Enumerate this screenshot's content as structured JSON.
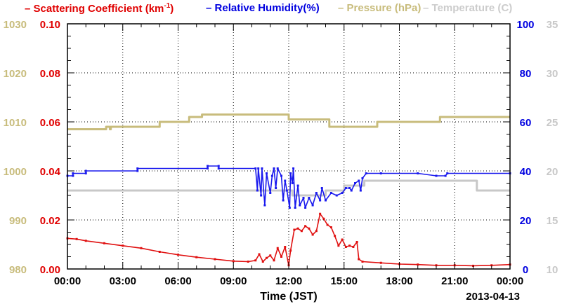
{
  "chart_data": {
    "type": "line",
    "x_axis": {
      "label": "Time (JST)",
      "date_label": "2013-04-13",
      "ticks": [
        "00:00",
        "03:00",
        "06:00",
        "09:00",
        "12:00",
        "15:00",
        "18:00",
        "21:00",
        "00:00"
      ],
      "range_hours": [
        0,
        24
      ]
    },
    "axes": {
      "pressure": {
        "ylim": [
          980,
          1030
        ],
        "ticks": [
          "980",
          "990",
          "1000",
          "1010",
          "1020",
          "1030"
        ],
        "color": "#c8bc7c"
      },
      "scattering": {
        "ylim": [
          0,
          0.1
        ],
        "ticks": [
          "0.00",
          "0.02",
          "0.04",
          "0.06",
          "0.08",
          "0.10"
        ],
        "color": "#e00000"
      },
      "humidity": {
        "ylim": [
          0,
          100
        ],
        "ticks": [
          "0",
          "20",
          "40",
          "60",
          "80",
          "100"
        ],
        "color": "#0000e0"
      },
      "temperature": {
        "ylim": [
          10,
          35
        ],
        "ticks": [
          "10",
          "15",
          "20",
          "25",
          "30",
          "35"
        ],
        "color": "#c8c8c8"
      }
    },
    "legend": [
      {
        "dash": "–",
        "text": "Scattering Coefficient (km",
        "sup": "-1",
        "close": ")",
        "color": "#e00000"
      },
      {
        "dash": "–",
        "text": "Relative Humidity(%)",
        "sup": "",
        "close": "",
        "color": "#0000e0"
      },
      {
        "dash": "–",
        "text": "Pressure (hPa)",
        "sup": "",
        "close": "",
        "color": "#c8bc7c"
      },
      {
        "dash": "–",
        "text": "Temperature (",
        "sup": "",
        "close": "C)",
        "color": "#cccccc"
      }
    ],
    "grid": true,
    "series": [
      {
        "name": "Pressure (hPa)",
        "axis": "pressure",
        "color": "#c8bc7c",
        "step": true,
        "points": [
          [
            0,
            1008.5
          ],
          [
            2.1,
            1008.5
          ],
          [
            2.1,
            1009
          ],
          [
            2.3,
            1009
          ],
          [
            2.3,
            1008.5
          ],
          [
            2.35,
            1008.5
          ],
          [
            2.35,
            1009
          ],
          [
            5,
            1009
          ],
          [
            5,
            1010
          ],
          [
            6.6,
            1010
          ],
          [
            6.6,
            1011
          ],
          [
            7.3,
            1011
          ],
          [
            7.3,
            1011.5
          ],
          [
            12,
            1011.5
          ],
          [
            12,
            1010.5
          ],
          [
            14.2,
            1010.5
          ],
          [
            14.2,
            1009
          ],
          [
            16.8,
            1009
          ],
          [
            16.8,
            1010
          ],
          [
            20.2,
            1010
          ],
          [
            20.2,
            1011
          ],
          [
            24,
            1011
          ]
        ]
      },
      {
        "name": "Temperature (C)",
        "axis": "temperature",
        "color": "#c8c8c8",
        "step": true,
        "points": [
          [
            0,
            18
          ],
          [
            10,
            18
          ],
          [
            12.2,
            18
          ],
          [
            12.2,
            17.5
          ],
          [
            14,
            17.5
          ],
          [
            14,
            18
          ],
          [
            15,
            18
          ],
          [
            15,
            18.5
          ],
          [
            16.1,
            18.5
          ],
          [
            16.1,
            19
          ],
          [
            22.2,
            19
          ],
          [
            22.2,
            18
          ],
          [
            24,
            18
          ]
        ]
      },
      {
        "name": "Relative Humidity(%)",
        "axis": "humidity",
        "color": "#1a1aee",
        "markers": true,
        "points": [
          [
            0,
            38
          ],
          [
            0.3,
            38
          ],
          [
            0.3,
            39
          ],
          [
            1,
            39
          ],
          [
            1,
            40
          ],
          [
            3.8,
            40
          ],
          [
            3.8,
            41
          ],
          [
            7.6,
            41
          ],
          [
            7.6,
            42
          ],
          [
            8.2,
            42
          ],
          [
            8.2,
            41
          ],
          [
            10.2,
            41
          ],
          [
            10.3,
            32
          ],
          [
            10.35,
            41
          ],
          [
            10.5,
            30
          ],
          [
            10.55,
            41
          ],
          [
            10.7,
            26
          ],
          [
            10.8,
            39
          ],
          [
            11,
            31
          ],
          [
            11.1,
            38
          ],
          [
            11.2,
            41
          ],
          [
            11.3,
            33
          ],
          [
            11.4,
            41
          ],
          [
            11.6,
            38
          ],
          [
            11.7,
            28
          ],
          [
            11.8,
            36
          ],
          [
            11.9,
            32
          ],
          [
            12.05,
            25
          ],
          [
            12.1,
            39
          ],
          [
            12.2,
            35
          ],
          [
            12.25,
            41
          ],
          [
            12.35,
            25
          ],
          [
            12.5,
            34
          ],
          [
            12.6,
            26
          ],
          [
            12.8,
            29
          ],
          [
            12.9,
            25
          ],
          [
            13.1,
            29
          ],
          [
            13.3,
            26
          ],
          [
            13.5,
            31
          ],
          [
            13.7,
            28
          ],
          [
            13.8,
            33
          ],
          [
            14.0,
            28
          ],
          [
            14.3,
            31
          ],
          [
            14.6,
            30
          ],
          [
            14.9,
            31
          ],
          [
            15.1,
            33
          ],
          [
            15.3,
            33
          ],
          [
            15.4,
            32
          ],
          [
            15.6,
            35
          ],
          [
            15.8,
            36
          ],
          [
            15.9,
            32
          ],
          [
            16.0,
            37
          ],
          [
            16.2,
            39
          ],
          [
            17,
            39
          ],
          [
            19,
            39
          ],
          [
            20,
            38
          ],
          [
            20.5,
            38
          ],
          [
            20.6,
            39
          ],
          [
            24,
            39
          ]
        ]
      },
      {
        "name": "Scattering Coefficient (km-1)",
        "axis": "scattering",
        "color": "#e01010",
        "markers": true,
        "points": [
          [
            0,
            0.0125
          ],
          [
            0.5,
            0.0122
          ],
          [
            1,
            0.0115
          ],
          [
            2,
            0.0105
          ],
          [
            3,
            0.0095
          ],
          [
            4,
            0.0085
          ],
          [
            5,
            0.007
          ],
          [
            6,
            0.0058
          ],
          [
            7,
            0.0048
          ],
          [
            8,
            0.004
          ],
          [
            9,
            0.0032
          ],
          [
            9.8,
            0.003
          ],
          [
            10.2,
            0.0035
          ],
          [
            10.4,
            0.006
          ],
          [
            10.6,
            0.003
          ],
          [
            10.8,
            0.0045
          ],
          [
            11,
            0.0055
          ],
          [
            11.2,
            0.0035
          ],
          [
            11.4,
            0.0085
          ],
          [
            11.6,
            0.005
          ],
          [
            11.8,
            0.009
          ],
          [
            12,
            0.0015
          ],
          [
            12.1,
            0.0075
          ],
          [
            12.3,
            0.016
          ],
          [
            12.5,
            0.0165
          ],
          [
            12.7,
            0.0155
          ],
          [
            12.9,
            0.0175
          ],
          [
            13.1,
            0.0165
          ],
          [
            13.3,
            0.014
          ],
          [
            13.5,
            0.0155
          ],
          [
            13.7,
            0.0225
          ],
          [
            13.9,
            0.0205
          ],
          [
            14.1,
            0.018
          ],
          [
            14.3,
            0.017
          ],
          [
            14.5,
            0.0135
          ],
          [
            14.7,
            0.0095
          ],
          [
            14.9,
            0.012
          ],
          [
            15.1,
            0.009
          ],
          [
            15.3,
            0.0095
          ],
          [
            15.5,
            0.009
          ],
          [
            15.7,
            0.011
          ],
          [
            15.8,
            0.004
          ],
          [
            16,
            0.003
          ],
          [
            17,
            0.0025
          ],
          [
            18,
            0.002
          ],
          [
            19,
            0.0018
          ],
          [
            20,
            0.0015
          ],
          [
            21,
            0.0015
          ],
          [
            22,
            0.0013
          ],
          [
            23,
            0.0015
          ],
          [
            24,
            0.0018
          ]
        ]
      }
    ]
  }
}
